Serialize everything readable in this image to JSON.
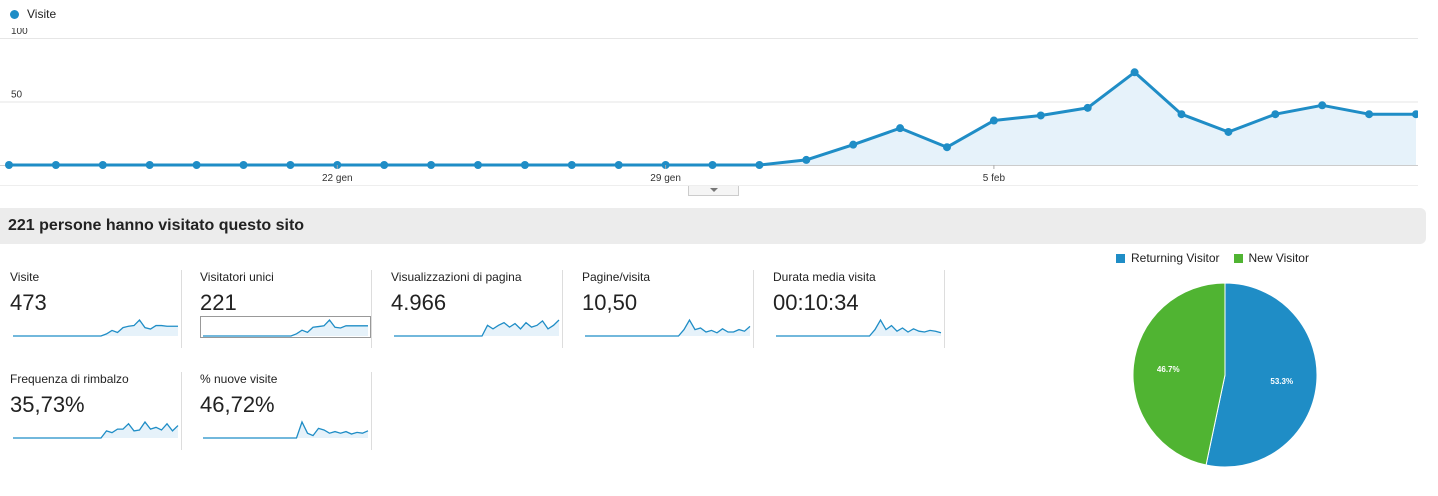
{
  "main_chart": {
    "legend_label": "Visite",
    "y_ticks": [
      "100",
      "50"
    ],
    "x_ticks": [
      "22 gen",
      "29 gen",
      "5 feb"
    ],
    "color": "#1f8dc6",
    "fill": "#e6f2fa"
  },
  "chart_data": [
    {
      "type": "area",
      "series": [
        {
          "name": "Visite",
          "values": [
            0,
            0,
            0,
            0,
            0,
            0,
            0,
            0,
            0,
            0,
            0,
            0,
            0,
            0,
            0,
            0,
            0,
            4,
            16,
            29,
            14,
            35,
            39,
            45,
            73,
            40,
            26,
            40,
            47,
            40,
            40
          ]
        }
      ],
      "ylim": [
        0,
        100
      ],
      "x_ticks": [
        "22 gen",
        "29 gen",
        "5 feb"
      ],
      "grid": true
    },
    {
      "type": "pie",
      "categories": [
        "Returning Visitor",
        "New Visitor"
      ],
      "values": [
        53.3,
        46.7
      ],
      "labels": [
        "53.3%",
        "46.7%"
      ],
      "colors": [
        "#1f8dc6",
        "#50b432"
      ],
      "legend_placement": "top"
    }
  ],
  "summary": {
    "title": "221 persone hanno visitato questo sito"
  },
  "metrics": [
    {
      "label": "Visite",
      "value": "473",
      "spark": [
        0,
        0,
        0,
        0,
        0,
        0,
        0,
        0,
        0,
        0,
        0,
        0,
        0,
        0,
        0,
        0,
        0,
        3,
        8,
        5,
        12,
        14,
        15,
        23,
        12,
        10,
        15,
        15,
        14,
        14,
        14
      ]
    },
    {
      "label": "Visitatori unici",
      "value": "221",
      "spark": [
        0,
        0,
        0,
        0,
        0,
        0,
        0,
        0,
        0,
        0,
        0,
        0,
        0,
        0,
        0,
        0,
        0,
        3,
        8,
        5,
        12,
        13,
        14,
        22,
        12,
        11,
        14,
        14,
        14,
        14,
        14
      ]
    },
    {
      "label": "Visualizzazioni di pagina",
      "value": "4.966",
      "spark": [
        0,
        0,
        0,
        0,
        0,
        0,
        0,
        0,
        0,
        0,
        0,
        0,
        0,
        0,
        0,
        0,
        0,
        12,
        8,
        12,
        15,
        10,
        14,
        8,
        15,
        10,
        12,
        17,
        8,
        12,
        18
      ]
    },
    {
      "label": "Pagine/visita",
      "value": "10,50",
      "spark": [
        0,
        0,
        0,
        0,
        0,
        0,
        0,
        0,
        0,
        0,
        0,
        0,
        0,
        0,
        0,
        0,
        0,
        0,
        8,
        20,
        8,
        10,
        5,
        7,
        4,
        9,
        5,
        5,
        8,
        6,
        12
      ]
    },
    {
      "label": "Durata media visita",
      "value": "00:10:34",
      "spark": [
        0,
        0,
        0,
        0,
        0,
        0,
        0,
        0,
        0,
        0,
        0,
        0,
        0,
        0,
        0,
        0,
        0,
        0,
        8,
        20,
        8,
        13,
        6,
        10,
        5,
        9,
        6,
        5,
        7,
        6,
        4
      ]
    },
    {
      "label": "Frequenza di rimbalzo",
      "value": "35,73%",
      "spark": [
        0,
        0,
        0,
        0,
        0,
        0,
        0,
        0,
        0,
        0,
        0,
        0,
        0,
        0,
        0,
        0,
        0,
        8,
        6,
        10,
        10,
        16,
        8,
        9,
        18,
        10,
        12,
        9,
        16,
        8,
        14
      ]
    },
    {
      "label": "% nuove visite",
      "value": "46,72%",
      "spark": [
        0,
        0,
        0,
        0,
        0,
        0,
        0,
        0,
        0,
        0,
        0,
        0,
        0,
        0,
        0,
        0,
        0,
        0,
        20,
        6,
        3,
        12,
        10,
        6,
        8,
        6,
        8,
        5,
        7,
        6,
        9
      ]
    }
  ]
}
